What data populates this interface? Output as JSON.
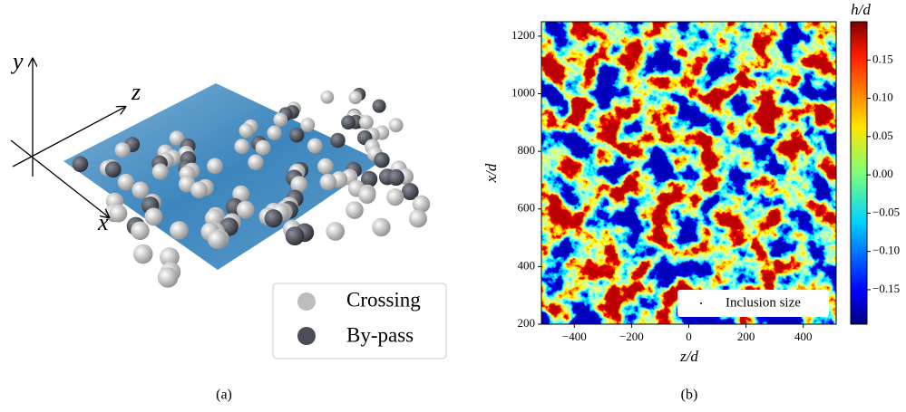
{
  "diagram": {
    "axes": [
      "y",
      "z",
      "x"
    ],
    "legend": [
      "Crossing",
      "By-pass"
    ],
    "caption": "(a)"
  },
  "chart_data": {
    "type": "heatmap",
    "xlabel": "z/d",
    "ylabel": "x/d",
    "colorbar_label": "h/d",
    "xlim": [
      -515,
      515
    ],
    "ylim": [
      200,
      1250
    ],
    "xticks": [
      {
        "value": -400,
        "label": "−400"
      },
      {
        "value": -200,
        "label": "−200"
      },
      0,
      200,
      400
    ],
    "yticks": [
      200,
      400,
      600,
      800,
      1000,
      1200
    ],
    "clim": [
      -0.195,
      0.2
    ],
    "cticks": [
      {
        "value": -0.15,
        "label": "−0.15"
      },
      {
        "value": -0.1,
        "label": "−0.10"
      },
      {
        "value": -0.05,
        "label": "−0.05"
      },
      {
        "value": 0,
        "label": "0.00"
      },
      {
        "value": 0.05,
        "label": "0.05"
      },
      {
        "value": 0.1,
        "label": "0.10"
      },
      {
        "value": 0.15,
        "label": "0.15"
      }
    ],
    "legend": "Inclusion size",
    "caption": "(b)"
  }
}
